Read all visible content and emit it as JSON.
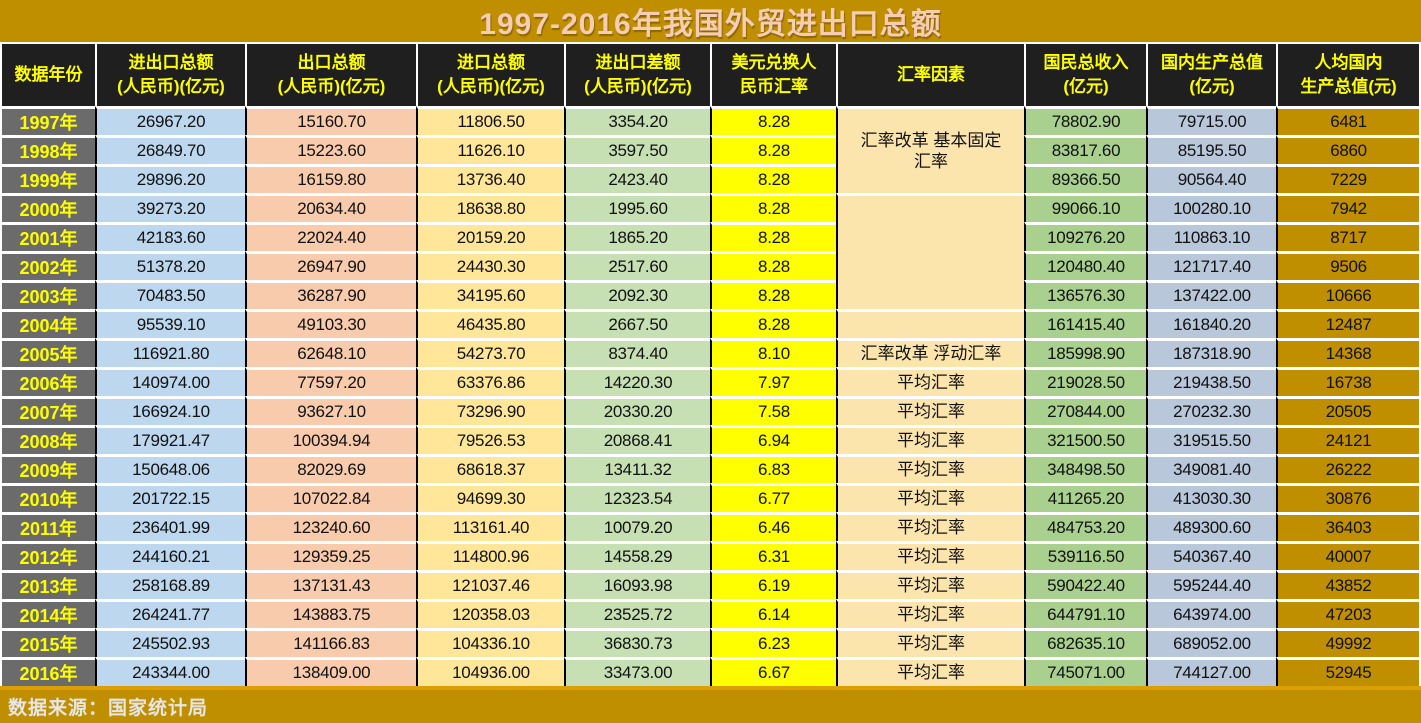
{
  "colors": {
    "title_bg": "#BF8F00",
    "title_text": "#F5CDB4",
    "header_bg": "#1F1F1F",
    "header_text": "#FFFF00",
    "year_bg": "#6B6B6B",
    "year_text": "#FFFF00",
    "c_total": "#BDD7EE",
    "c_export": "#F8CBAD",
    "c_import": "#FFE699",
    "c_balance": "#C6E0B4",
    "c_rate": "#FFFF00",
    "c_factor": "#FCE5AC",
    "c_gni": "#A9D08E",
    "c_gdp": "#B9C7DB",
    "c_percap": "#BF8F00",
    "grid_v": "#000000",
    "grid_h": "#FFFFFF",
    "footer_bg": "#BF8F00",
    "footer_text": "#E6E6E6",
    "accent_line": "#DC9F00"
  },
  "footer": {
    "source": "数据来源：国家统计局"
  },
  "chart_data": {
    "type": "table",
    "title": "1997-2016年我国外贸进出口总额",
    "columns": [
      {
        "line1": "数据年份",
        "line2": ""
      },
      {
        "line1": "进出口总额",
        "line2": "(人民币)(亿元)"
      },
      {
        "line1": "出口总额",
        "line2": "(人民币)(亿元)"
      },
      {
        "line1": "进口总额",
        "line2": "(人民币)(亿元)"
      },
      {
        "line1": "进出口差额",
        "line2": "(人民币)(亿元)"
      },
      {
        "line1": "美元兑换人",
        "line2": "民币汇率"
      },
      {
        "line1": "汇率因素",
        "line2": ""
      },
      {
        "line1": "国民总收入",
        "line2": "(亿元)"
      },
      {
        "line1": "国内生产总值",
        "line2": "(亿元)"
      },
      {
        "line1": "人均国内",
        "line2": "生产总值(元)"
      }
    ],
    "rows": [
      {
        "year": "1997年",
        "total": "26967.20",
        "export": "15160.70",
        "import": "11806.50",
        "balance": "3354.20",
        "rate": "8.28",
        "factor": {
          "text": "汇率改革 基本固定\n汇率",
          "span": 3
        },
        "gni": "78802.90",
        "gdp": "79715.00",
        "percap": "6481"
      },
      {
        "year": "1998年",
        "total": "26849.70",
        "export": "15223.60",
        "import": "11626.10",
        "balance": "3597.50",
        "rate": "8.28",
        "factor": null,
        "gni": "83817.60",
        "gdp": "85195.50",
        "percap": "6860"
      },
      {
        "year": "1999年",
        "total": "29896.20",
        "export": "16159.80",
        "import": "13736.40",
        "balance": "2423.40",
        "rate": "8.28",
        "factor": null,
        "gni": "89366.50",
        "gdp": "90564.40",
        "percap": "7229"
      },
      {
        "year": "2000年",
        "total": "39273.20",
        "export": "20634.40",
        "import": "18638.80",
        "balance": "1995.60",
        "rate": "8.28",
        "factor": {
          "text": "",
          "span": 4
        },
        "gni": "99066.10",
        "gdp": "100280.10",
        "percap": "7942"
      },
      {
        "year": "2001年",
        "total": "42183.60",
        "export": "22024.40",
        "import": "20159.20",
        "balance": "1865.20",
        "rate": "8.28",
        "factor": null,
        "gni": "109276.20",
        "gdp": "110863.10",
        "percap": "8717"
      },
      {
        "year": "2002年",
        "total": "51378.20",
        "export": "26947.90",
        "import": "24430.30",
        "balance": "2517.60",
        "rate": "8.28",
        "factor": null,
        "gni": "120480.40",
        "gdp": "121717.40",
        "percap": "9506"
      },
      {
        "year": "2003年",
        "total": "70483.50",
        "export": "36287.90",
        "import": "34195.60",
        "balance": "2092.30",
        "rate": "8.28",
        "factor": null,
        "gni": "136576.30",
        "gdp": "137422.00",
        "percap": "10666"
      },
      {
        "year": "2004年",
        "total": "95539.10",
        "export": "49103.30",
        "import": "46435.80",
        "balance": "2667.50",
        "rate": "8.28",
        "factor": {
          "text": "",
          "span": 1
        },
        "gni": "161415.40",
        "gdp": "161840.20",
        "percap": "12487"
      },
      {
        "year": "2005年",
        "total": "116921.80",
        "export": "62648.10",
        "import": "54273.70",
        "balance": "8374.40",
        "rate": "8.10",
        "factor": {
          "text": "汇率改革 浮动汇率",
          "span": 1
        },
        "gni": "185998.90",
        "gdp": "187318.90",
        "percap": "14368"
      },
      {
        "year": "2006年",
        "total": "140974.00",
        "export": "77597.20",
        "import": "63376.86",
        "balance": "14220.30",
        "rate": "7.97",
        "factor": {
          "text": "平均汇率",
          "span": 1
        },
        "gni": "219028.50",
        "gdp": "219438.50",
        "percap": "16738"
      },
      {
        "year": "2007年",
        "total": "166924.10",
        "export": "93627.10",
        "import": "73296.90",
        "balance": "20330.20",
        "rate": "7.58",
        "factor": {
          "text": "平均汇率",
          "span": 1
        },
        "gni": "270844.00",
        "gdp": "270232.30",
        "percap": "20505"
      },
      {
        "year": "2008年",
        "total": "179921.47",
        "export": "100394.94",
        "import": "79526.53",
        "balance": "20868.41",
        "rate": "6.94",
        "factor": {
          "text": "平均汇率",
          "span": 1
        },
        "gni": "321500.50",
        "gdp": "319515.50",
        "percap": "24121"
      },
      {
        "year": "2009年",
        "total": "150648.06",
        "export": "82029.69",
        "import": "68618.37",
        "balance": "13411.32",
        "rate": "6.83",
        "factor": {
          "text": "平均汇率",
          "span": 1
        },
        "gni": "348498.50",
        "gdp": "349081.40",
        "percap": "26222"
      },
      {
        "year": "2010年",
        "total": "201722.15",
        "export": "107022.84",
        "import": "94699.30",
        "balance": "12323.54",
        "rate": "6.77",
        "factor": {
          "text": "平均汇率",
          "span": 1
        },
        "gni": "411265.20",
        "gdp": "413030.30",
        "percap": "30876"
      },
      {
        "year": "2011年",
        "total": "236401.99",
        "export": "123240.60",
        "import": "113161.40",
        "balance": "10079.20",
        "rate": "6.46",
        "factor": {
          "text": "平均汇率",
          "span": 1
        },
        "gni": "484753.20",
        "gdp": "489300.60",
        "percap": "36403"
      },
      {
        "year": "2012年",
        "total": "244160.21",
        "export": "129359.25",
        "import": "114800.96",
        "balance": "14558.29",
        "rate": "6.31",
        "factor": {
          "text": "平均汇率",
          "span": 1
        },
        "gni": "539116.50",
        "gdp": "540367.40",
        "percap": "40007"
      },
      {
        "year": "2013年",
        "total": "258168.89",
        "export": "137131.43",
        "import": "121037.46",
        "balance": "16093.98",
        "rate": "6.19",
        "factor": {
          "text": "平均汇率",
          "span": 1
        },
        "gni": "590422.40",
        "gdp": "595244.40",
        "percap": "43852"
      },
      {
        "year": "2014年",
        "total": "264241.77",
        "export": "143883.75",
        "import": "120358.03",
        "balance": "23525.72",
        "rate": "6.14",
        "factor": {
          "text": "平均汇率",
          "span": 1
        },
        "gni": "644791.10",
        "gdp": "643974.00",
        "percap": "47203"
      },
      {
        "year": "2015年",
        "total": "245502.93",
        "export": "141166.83",
        "import": "104336.10",
        "balance": "36830.73",
        "rate": "6.23",
        "factor": {
          "text": "平均汇率",
          "span": 1
        },
        "gni": "682635.10",
        "gdp": "689052.00",
        "percap": "49992"
      },
      {
        "year": "2016年",
        "total": "243344.00",
        "export": "138409.00",
        "import": "104936.00",
        "balance": "33473.00",
        "rate": "6.67",
        "factor": {
          "text": "平均汇率",
          "span": 1
        },
        "gni": "745071.00",
        "gdp": "744127.00",
        "percap": "52945"
      }
    ]
  }
}
